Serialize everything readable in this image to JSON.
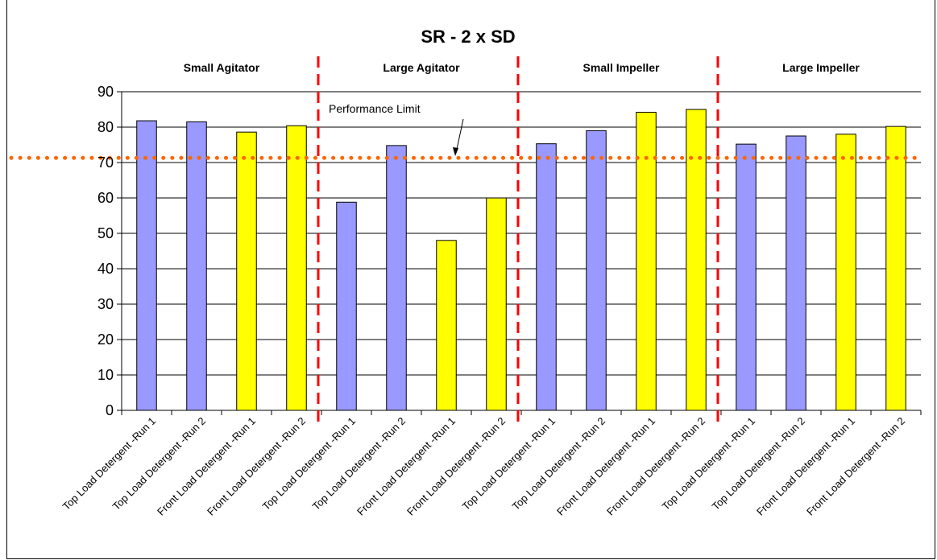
{
  "chart_data": {
    "type": "bar",
    "title": "SR - 2 x SD",
    "xlabel": "",
    "ylabel": "",
    "ylim": [
      0,
      90
    ],
    "yticks": [
      0,
      10,
      20,
      30,
      40,
      50,
      60,
      70,
      80,
      90
    ],
    "grid": true,
    "legend": "none",
    "groups": [
      {
        "label": "Small Agitator",
        "start": 0,
        "end": 3
      },
      {
        "label": "Large Agitator",
        "start": 4,
        "end": 7
      },
      {
        "label": "Small Impeller",
        "start": 8,
        "end": 11
      },
      {
        "label": "Large Impeller",
        "start": 12,
        "end": 15
      }
    ],
    "categories": [
      "Top Load Detergent -Run 1",
      "Top Load Detergent -Run 2",
      "Front Load Detergent -Run 1",
      "Front Load Detergent -Run 2",
      "Top Load Detergent -Run 1",
      "Top Load Detergent -Run 2",
      "Front Load Detergent -Run 1",
      "Front Load Detergent -Run 2",
      "Top Load Detergent -Run 1",
      "Top Load Detergent -Run 2",
      "Front Load Detergent -Run 1",
      "Front Load Detergent -Run 2",
      "Top Load Detergent -Run 1",
      "Top Load Detergent -Run 2",
      "Front Load Detergent -Run 1",
      "Front Load Detergent -Run 2"
    ],
    "values": [
      81.8,
      81.5,
      78.6,
      80.4,
      58.8,
      74.8,
      48.0,
      60.0,
      75.3,
      79.0,
      84.2,
      85.0,
      75.2,
      77.5,
      78.0,
      80.2
    ],
    "bar_colors": [
      "#9999ff",
      "#9999ff",
      "#ffff00",
      "#ffff00",
      "#9999ff",
      "#9999ff",
      "#ffff00",
      "#ffff00",
      "#9999ff",
      "#9999ff",
      "#ffff00",
      "#ffff00",
      "#9999ff",
      "#9999ff",
      "#ffff00",
      "#ffff00"
    ],
    "reference_line": {
      "value": 71.3,
      "label": "Performance Limit",
      "color": "#ff6600"
    },
    "separator_color": "#ff0000"
  }
}
